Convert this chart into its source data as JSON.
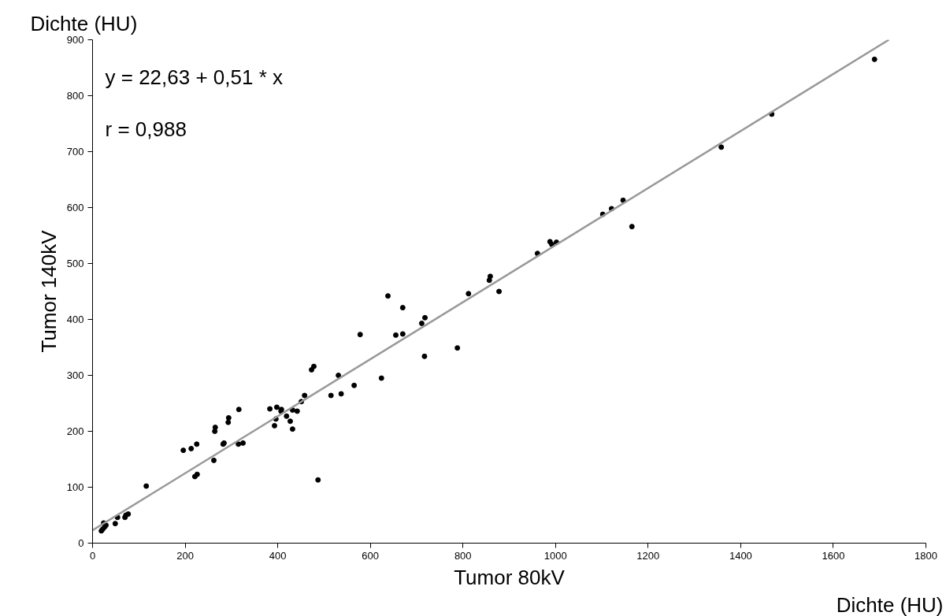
{
  "chart_data": {
    "type": "scatter",
    "xlabel": "Tumor 80kV",
    "ylabel": "Tumor 140kV",
    "annotations": [
      "Dichte (HU)",
      "Dichte (HU)",
      "y = 22,63 + 0,51 * x",
      "r = 0,988"
    ],
    "xlim": [
      0,
      1800
    ],
    "ylim": [
      0,
      900
    ],
    "xticks": [
      0,
      200,
      400,
      600,
      800,
      1000,
      1200,
      1400,
      1600,
      1800
    ],
    "yticks": [
      0,
      100,
      200,
      300,
      400,
      500,
      600,
      700,
      800,
      900
    ],
    "grid": false,
    "series": [
      {
        "marker": "circle",
        "color": "#000000",
        "x": [
          19,
          22,
          26,
          29,
          24,
          49,
          54,
          70,
          72,
          77,
          116,
          196,
          213,
          225,
          221,
          226,
          262,
          264,
          265,
          282,
          284,
          293,
          294,
          315,
          325,
          316,
          383,
          393,
          396,
          398,
          407,
          408,
          419,
          427,
          432,
          432,
          442,
          451,
          458,
          487,
          638,
          670,
          655,
          670,
          578,
          624,
          565,
          537,
          515,
          531,
          473,
          478,
          988,
          992,
          1002,
          961,
          859,
          857,
          878,
          812,
          788,
          717,
          718,
          711,
          1102,
          1121,
          1146,
          1165,
          1358,
          1467,
          1689
        ],
        "values": [
          22,
          25,
          29,
          32,
          36,
          35,
          46,
          46,
          50,
          52,
          102,
          166,
          169,
          177,
          119,
          123,
          148,
          200,
          207,
          177,
          179,
          216,
          224,
          177,
          179,
          239,
          240,
          210,
          222,
          243,
          236,
          239,
          227,
          218,
          204,
          238,
          236,
          253,
          264,
          113,
          442,
          421,
          372,
          374,
          373,
          295,
          282,
          267,
          264,
          300,
          310,
          316,
          539,
          534,
          538,
          518,
          477,
          470,
          450,
          446,
          349,
          334,
          403,
          393,
          588,
          598,
          613,
          566,
          708,
          767,
          865
        ]
      },
      {
        "type": "line",
        "color": "#999999",
        "line_style": "solid",
        "x": [
          0,
          1720
        ],
        "values": [
          23,
          900
        ]
      }
    ]
  }
}
